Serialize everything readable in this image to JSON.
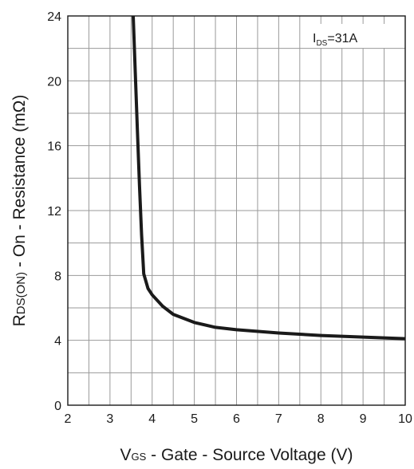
{
  "chart_data": {
    "type": "line",
    "xlabel_parts": {
      "main": "V",
      "sub": "GS",
      "rest": " - Gate - Source Voltage (V)"
    },
    "ylabel_parts": {
      "main": "R",
      "sub": "DS(ON)",
      "rest": " - On - Resistance (mΩ)"
    },
    "xlim": [
      2,
      10
    ],
    "ylim": [
      0,
      24
    ],
    "x_ticks": [
      2,
      3,
      4,
      5,
      6,
      7,
      8,
      9,
      10
    ],
    "y_ticks": [
      0,
      4,
      8,
      12,
      16,
      20,
      24
    ],
    "x_minor_step": 0.5,
    "y_minor_step": 2,
    "grid": true,
    "annotation": {
      "main": "I",
      "sub": "DS",
      "rest": "=31A",
      "position": "top-right"
    },
    "series": [
      {
        "x": [
          3.55,
          3.6,
          3.65,
          3.7,
          3.75,
          3.8,
          3.9,
          4.0,
          4.25,
          4.5,
          5.0,
          5.5,
          6.0,
          7.0,
          8.0,
          9.0,
          10.0
        ],
        "y": [
          24,
          20.5,
          17,
          13.5,
          10.5,
          8.1,
          7.2,
          6.8,
          6.1,
          5.6,
          5.1,
          4.8,
          4.65,
          4.45,
          4.3,
          4.2,
          4.1
        ]
      }
    ],
    "colors": {
      "line": "#1a1a1a",
      "grid": "#9a9a9a",
      "axis": "#1a1a1a"
    }
  }
}
